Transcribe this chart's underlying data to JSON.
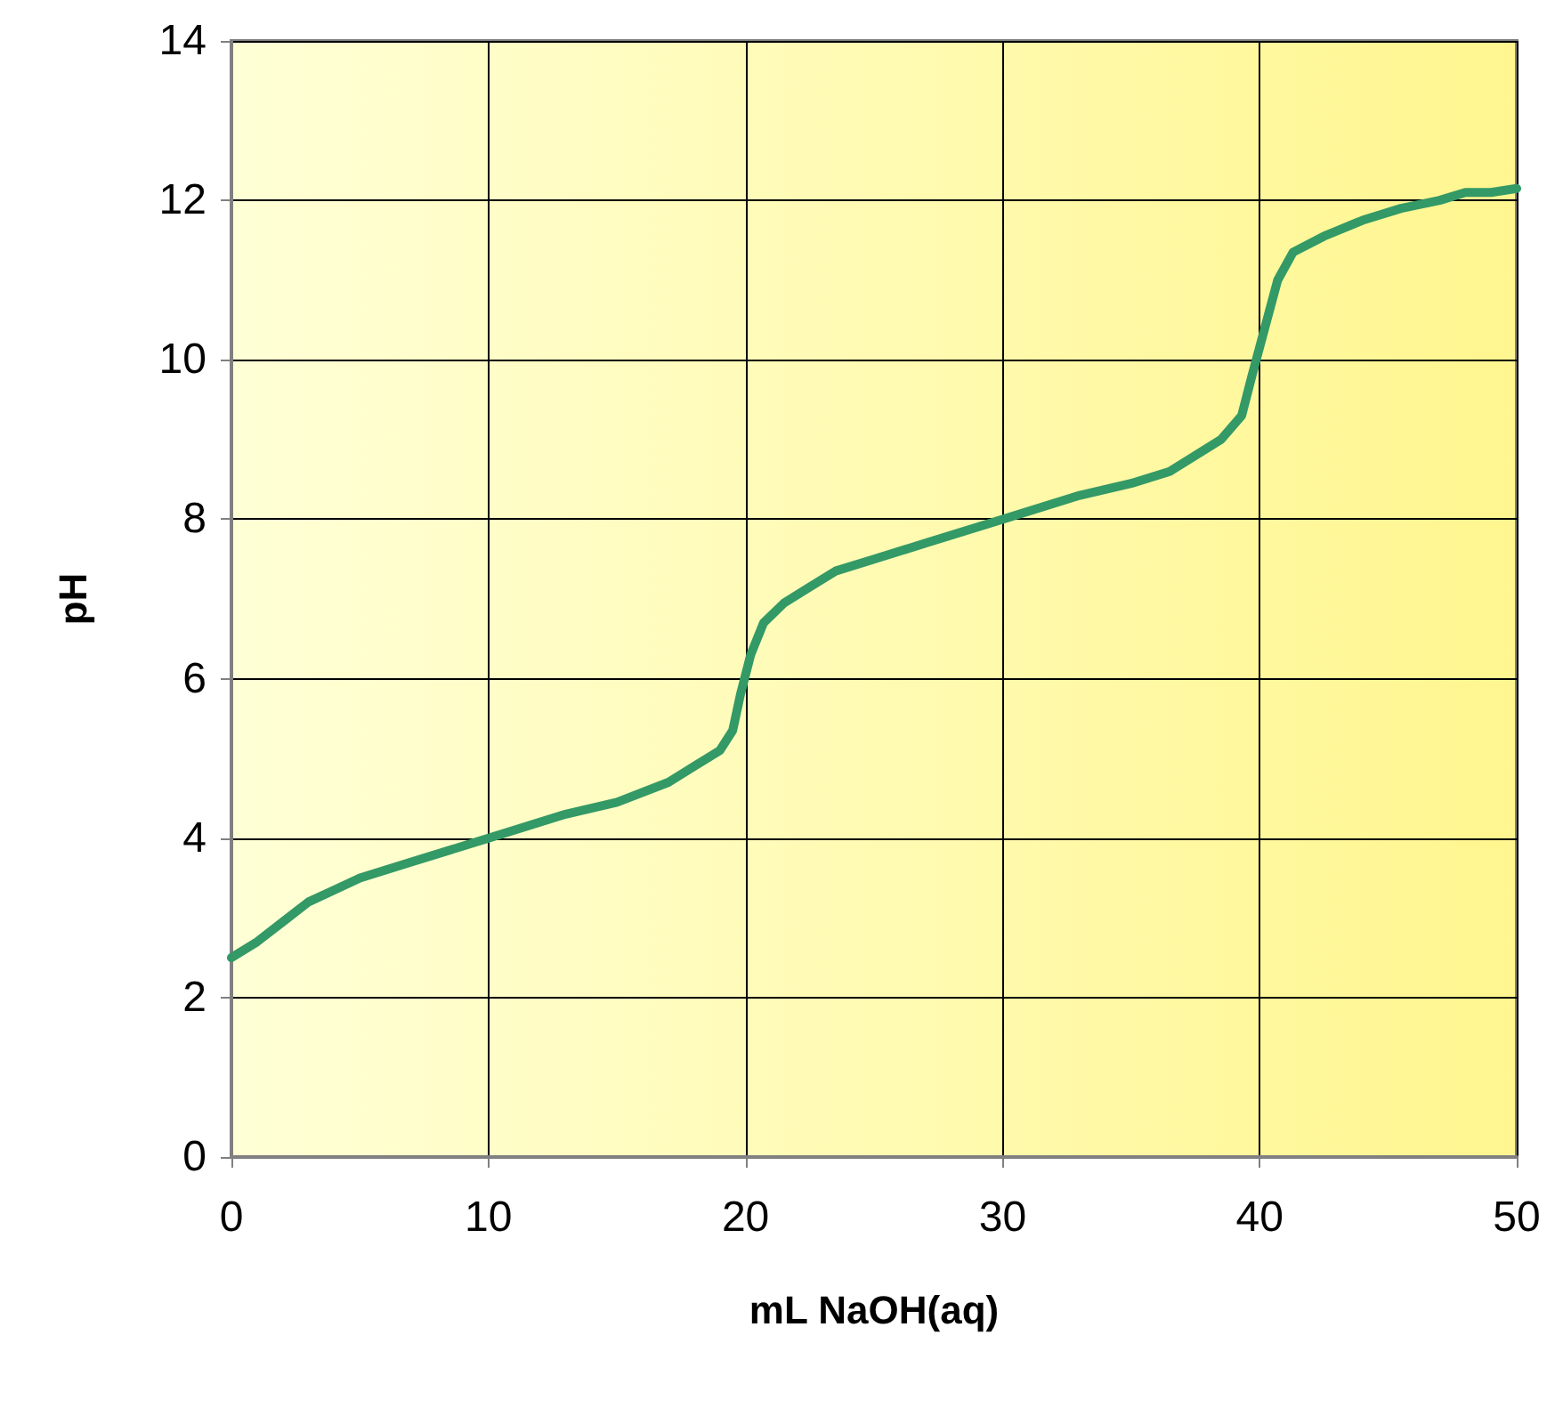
{
  "chart_data": {
    "type": "line",
    "xlabel": "mL NaOH(aq)",
    "ylabel": "pH",
    "series": [
      {
        "color": "#339966",
        "x": [
          0,
          1,
          2,
          3,
          4,
          5,
          7,
          10,
          13,
          15,
          17,
          18,
          19,
          19.5,
          19.8,
          20.2,
          20.7,
          21.5,
          22.5,
          23.5,
          25,
          27,
          30,
          33,
          35,
          36.5,
          37.5,
          38.5,
          39.3,
          39.7,
          40.2,
          40.7,
          41.3,
          42.5,
          44,
          45.5,
          47,
          48,
          49,
          50
        ],
        "values": [
          2.5,
          2.7,
          2.95,
          3.2,
          3.35,
          3.5,
          3.7,
          4.0,
          4.3,
          4.45,
          4.7,
          4.9,
          5.1,
          5.35,
          5.8,
          6.3,
          6.7,
          6.95,
          7.15,
          7.35,
          7.5,
          7.7,
          8.0,
          8.3,
          8.45,
          8.6,
          8.8,
          9.0,
          9.3,
          9.8,
          10.4,
          11.0,
          11.35,
          11.55,
          11.75,
          11.9,
          12.0,
          12.1,
          12.1,
          12.15
        ]
      }
    ],
    "xlim": [
      0,
      50
    ],
    "xticks": [
      0,
      10,
      20,
      30,
      40,
      50
    ],
    "ylim": [
      0,
      14
    ],
    "yticks": [
      0,
      2,
      4,
      6,
      8,
      10,
      12,
      14
    ],
    "grid": true,
    "marker": "none",
    "line_style": "solid"
  }
}
